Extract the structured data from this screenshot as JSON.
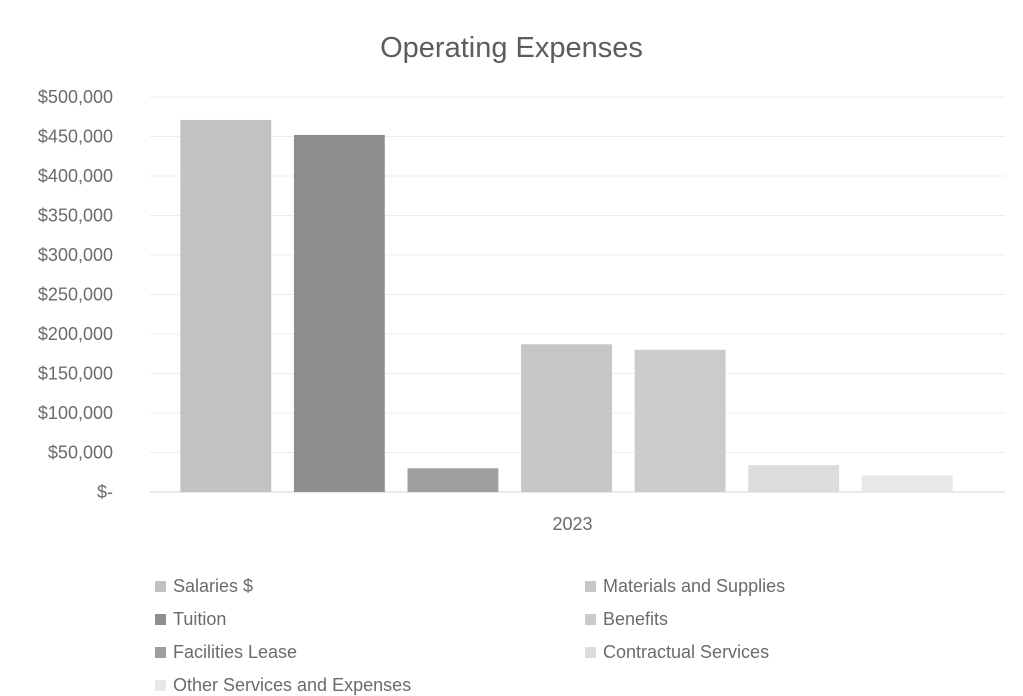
{
  "chart_data": {
    "type": "bar",
    "title": "Operating Expenses",
    "categories": [
      "2023"
    ],
    "ylim": [
      0,
      500000
    ],
    "y_ticks": [
      "$-",
      "$50,000",
      "$100,000",
      "$150,000",
      "$200,000",
      "$250,000",
      "$300,000",
      "$350,000",
      "$400,000",
      "$450,000",
      "$500,000"
    ],
    "y_tick_values": [
      0,
      50000,
      100000,
      150000,
      200000,
      250000,
      300000,
      350000,
      400000,
      450000,
      500000
    ],
    "grid": true,
    "legend_position": "bottom",
    "series": [
      {
        "name": "Salaries $",
        "values": [
          471000
        ],
        "color": "#c2c2c2"
      },
      {
        "name": "Tuition",
        "values": [
          452000
        ],
        "color": "#8e8e8e"
      },
      {
        "name": "Facilities Lease",
        "values": [
          30000
        ],
        "color": "#9e9e9e"
      },
      {
        "name": "Materials and Supplies",
        "values": [
          187000
        ],
        "color": "#c6c6c6"
      },
      {
        "name": "Benefits",
        "values": [
          180000
        ],
        "color": "#cbcbcb"
      },
      {
        "name": "Contractual Services",
        "values": [
          34000
        ],
        "color": "#dcdcdc"
      },
      {
        "name": "Other Services and Expenses",
        "values": [
          21000
        ],
        "color": "#e8e8e8"
      }
    ]
  }
}
